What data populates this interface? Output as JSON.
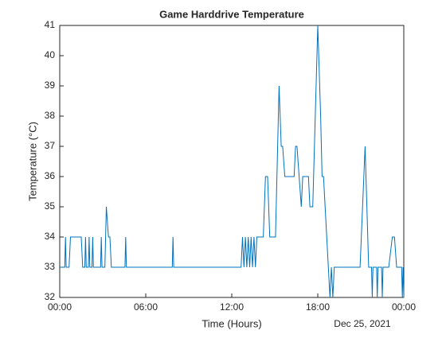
{
  "chart_data": {
    "type": "line",
    "title": "Game Harddrive Temperature",
    "xlabel": "Time (Hours)",
    "ylabel": "Temperature (°C)",
    "date_label": "Dec 25, 2021",
    "x": [
      0,
      0.35,
      0.4,
      0.45,
      0.65,
      0.75,
      1.5,
      1.6,
      1.75,
      1.8,
      1.85,
      2.0,
      2.05,
      2.1,
      2.25,
      2.3,
      2.35,
      2.85,
      2.9,
      2.95,
      3.15,
      3.25,
      3.4,
      3.5,
      3.6,
      3.7,
      4.55,
      4.6,
      4.65,
      7.85,
      7.9,
      7.95,
      12.65,
      12.75,
      12.85,
      12.95,
      13.05,
      13.15,
      13.25,
      13.35,
      13.45,
      13.55,
      13.65,
      13.75,
      13.85,
      14.2,
      14.35,
      14.5,
      14.65,
      15.05,
      15.3,
      15.45,
      15.55,
      15.7,
      16.35,
      16.45,
      16.55,
      16.7,
      16.85,
      16.95,
      17.05,
      17.35,
      17.45,
      17.65,
      18.0,
      18.2,
      18.3,
      18.4,
      18.85,
      18.95,
      19.05,
      19.15,
      20.95,
      21.3,
      21.55,
      21.75,
      21.8,
      21.85,
      22.1,
      22.15,
      22.2,
      22.45,
      22.5,
      22.55,
      22.95,
      23.2,
      23.35,
      23.5,
      23.85,
      23.9,
      23.95,
      24
    ],
    "series": [
      {
        "name": "Temperature",
        "color": "#0072bd",
        "values": [
          33,
          33,
          34,
          33,
          33,
          34,
          34,
          33,
          33,
          34,
          33,
          33,
          34,
          33,
          33,
          34,
          33,
          33,
          34,
          33,
          33,
          35,
          34,
          34,
          33,
          33,
          33,
          34,
          33,
          33,
          34,
          33,
          33,
          34,
          33,
          34,
          33,
          34,
          33,
          34,
          33,
          34,
          33,
          34,
          34,
          34,
          36,
          36,
          34,
          34,
          39,
          37,
          37,
          36,
          36,
          37,
          37,
          36,
          35,
          36,
          36,
          36,
          35,
          35,
          41,
          38,
          36,
          36,
          32,
          33,
          32,
          33,
          33,
          37,
          33,
          33,
          32,
          33,
          33,
          32,
          33,
          33,
          32,
          33,
          33,
          34,
          34,
          33,
          33,
          32,
          33,
          32
        ]
      }
    ],
    "xlim": [
      0,
      24
    ],
    "xticks": [
      {
        "value": 0,
        "label": "00:00"
      },
      {
        "value": 6,
        "label": "06:00"
      },
      {
        "value": 12,
        "label": "12:00"
      },
      {
        "value": 18,
        "label": "18:00"
      },
      {
        "value": 24,
        "label": "00:00"
      }
    ],
    "ylim": [
      32,
      41
    ],
    "yticks": [
      32,
      33,
      34,
      35,
      36,
      37,
      38,
      39,
      40,
      41
    ],
    "grid": false
  }
}
